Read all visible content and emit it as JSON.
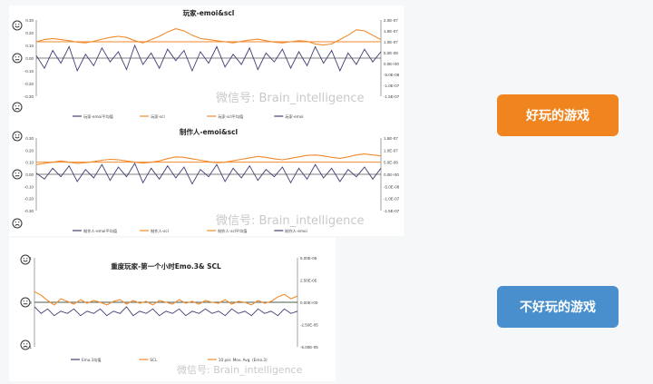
{
  "buttons": {
    "good_game": "好玩的游戏",
    "bad_game": "不好玩的游戏"
  },
  "watermark": "微信号: Brain_intelligence",
  "colors": {
    "emo": "#3f3f74",
    "scl": "#f08a2c",
    "avg": "#2e7a3a",
    "good": "#f0841f",
    "bad": "#4a8fcd"
  },
  "chart_data": [
    {
      "type": "line",
      "title": "玩家-emoi&scl",
      "y_left_ticks": [
        "0.30",
        "0.20",
        "0.10",
        "0.00",
        "-0.10",
        "-0.20",
        "-0.30"
      ],
      "y_right_ticks": [
        "2.0E-07",
        "1.5E-07",
        "1.0E-07",
        "5.0E-08",
        "0.0E+00",
        "-5.0E-08",
        "-1.0E-07",
        "-1.5E-07"
      ],
      "ylim_left": [
        -0.3,
        0.3
      ],
      "ylim_right": [
        -1.5e-07,
        2e-07
      ],
      "emo_baseline": 0.0,
      "scl_avg": 1e-07,
      "legend": [
        "玩家-emoi平均值",
        "玩家-scl",
        "玩家-scl平均值",
        "玩家-emoi"
      ],
      "legend_position": "bottom",
      "series": [
        {
          "name": "玩家-scl",
          "axis": "right",
          "values": [
            1e-07,
            1.1e-07,
            1.15e-07,
            1.1e-07,
            1.05e-07,
            9.8e-08,
            9.5e-08,
            1.02e-07,
            1.12e-07,
            1.2e-07,
            1.25e-07,
            1.2e-07,
            1.05e-07,
            9.5e-08,
            1.1e-07,
            1.25e-07,
            1.45e-07,
            1.6e-07,
            1.5e-07,
            1.3e-07,
            1.15e-07,
            1.1e-07,
            1.05e-07,
            1e-07,
            9.5e-08,
            1.02e-07,
            1.08e-07,
            1.12e-07,
            1.05e-07,
            9.8e-08,
            9.5e-08,
            1e-07,
            1.05e-07,
            1.02e-07,
            9e-08,
            8.5e-08,
            9e-08,
            1.1e-07,
            1.3e-07,
            1.55e-07,
            1.5e-07,
            1.3e-07,
            1.1e-07
          ]
        },
        {
          "name": "玩家-emoi",
          "axis": "left",
          "values": [
            0.02,
            -0.08,
            0.06,
            -0.04,
            0.09,
            -0.1,
            0.03,
            -0.06,
            0.08,
            -0.03,
            0.05,
            -0.09,
            0.1,
            -0.05,
            0.04,
            -0.08,
            0.07,
            -0.02,
            0.06,
            -0.1,
            0.05,
            -0.04,
            0.09,
            -0.07,
            0.03,
            -0.05,
            0.08,
            -0.09,
            0.04,
            -0.03,
            0.07,
            -0.08,
            0.05,
            -0.06,
            0.09,
            -0.04,
            0.06,
            -0.1,
            0.04,
            -0.05,
            0.07,
            -0.03,
            0.05
          ]
        }
      ]
    },
    {
      "type": "line",
      "title": "制作人-emoi&scl",
      "y_left_ticks": [
        "0.30",
        "0.20",
        "0.10",
        "0.00",
        "-0.10",
        "-0.20",
        "-0.30"
      ],
      "y_right_ticks": [
        "1.5E-07",
        "1.0E-07",
        "5.0E-08",
        "0.0E+00",
        "-5.0E-08",
        "-1.0E-07",
        "-1.5E-07"
      ],
      "ylim_left": [
        -0.3,
        0.3
      ],
      "ylim_right": [
        -1.5e-07,
        1.5e-07
      ],
      "emo_baseline": 0.0,
      "scl_avg": 5e-08,
      "legend": [
        "制作人-emoi平均值",
        "制作人-scl",
        "制作人-scl平均值",
        "制作人-emoi"
      ],
      "legend_position": "bottom",
      "series": [
        {
          "name": "制作人-scl",
          "axis": "right",
          "values": [
            4e-08,
            4.5e-08,
            5e-08,
            5.5e-08,
            5e-08,
            4.5e-08,
            4.8e-08,
            5.2e-08,
            5.8e-08,
            6.2e-08,
            6e-08,
            5.5e-08,
            5e-08,
            4.6e-08,
            5e-08,
            5.5e-08,
            6.5e-08,
            7.2e-08,
            7e-08,
            6.4e-08,
            5.8e-08,
            5.2e-08,
            4.8e-08,
            5e-08,
            5.6e-08,
            6.2e-08,
            6.8e-08,
            7.4e-08,
            7e-08,
            6.4e-08,
            6e-08,
            6.6e-08,
            7.2e-08,
            7.8e-08,
            8e-08,
            7.6e-08,
            7e-08,
            6.6e-08,
            7.2e-08,
            8e-08,
            8.4e-08,
            8e-08,
            7.6e-08
          ]
        },
        {
          "name": "制作人-emoi",
          "axis": "left",
          "values": [
            0.01,
            -0.04,
            0.05,
            -0.02,
            0.07,
            -0.06,
            0.04,
            -0.03,
            0.08,
            -0.05,
            0.06,
            -0.02,
            0.09,
            -0.07,
            0.05,
            -0.04,
            0.07,
            -0.03,
            0.06,
            -0.08,
            0.04,
            -0.02,
            0.08,
            -0.06,
            0.05,
            -0.03,
            0.07,
            -0.05,
            0.04,
            -0.02,
            0.06,
            -0.07,
            0.05,
            -0.04,
            0.08,
            -0.03,
            0.05,
            -0.06,
            0.04,
            -0.02,
            0.06,
            -0.04,
            0.05
          ]
        }
      ]
    },
    {
      "type": "line",
      "title": "重度玩家-第一个小时Emo.3& SCL",
      "y_left_ticks": [
        "0.1",
        "0",
        "-0.1"
      ],
      "y_right_ticks": [
        "5.00E-05",
        "2.50E-05",
        "0.00E+00",
        "-2.50E-05",
        "-5.00E-05"
      ],
      "ylim_left": [
        -0.2,
        0.2
      ],
      "ylim_right": [
        -5e-05,
        5e-05
      ],
      "emo_baseline": 0.0,
      "scl_avg": 0.0,
      "legend": [
        "Emo.3均值",
        "SCL",
        "10 per. Mov. Avg. (Emo.3)"
      ],
      "legend_position": "bottom",
      "series": [
        {
          "name": "SCL",
          "axis": "right",
          "values": [
            1.2e-05,
            8e-06,
            2e-06,
            -3e-06,
            4e-06,
            1e-06,
            -2e-06,
            3e-06,
            -1e-06,
            2e-06,
            0.0,
            -3e-06,
            1e-06,
            3e-06,
            -2e-06,
            2e-06,
            -1e-06,
            1e-06,
            -3e-06,
            2e-06,
            0.0,
            -2e-06,
            3e-06,
            -1e-06,
            1e-06,
            -2e-06,
            2e-06,
            0.0,
            -1e-06,
            3e-06,
            -2e-06,
            1e-06,
            0.0,
            -3e-06,
            2e-06,
            -1e-06,
            1e-06,
            6e-06,
            9e-06,
            4e-06,
            7e-06
          ]
        },
        {
          "name": "10 per. Mov. Avg. (Emo.3)",
          "axis": "left",
          "values": [
            -0.02,
            -0.05,
            -0.03,
            -0.06,
            -0.04,
            -0.05,
            -0.03,
            -0.06,
            -0.04,
            -0.05,
            -0.03,
            -0.06,
            -0.04,
            -0.05,
            -0.02,
            -0.06,
            -0.04,
            -0.05,
            -0.03,
            -0.06,
            -0.04,
            -0.05,
            -0.03,
            -0.06,
            -0.04,
            -0.05,
            -0.03,
            -0.05,
            -0.04,
            -0.06,
            -0.03,
            -0.05,
            -0.04,
            -0.06,
            -0.03,
            -0.05,
            -0.04,
            -0.06,
            -0.03,
            -0.05,
            -0.04
          ]
        }
      ]
    }
  ]
}
